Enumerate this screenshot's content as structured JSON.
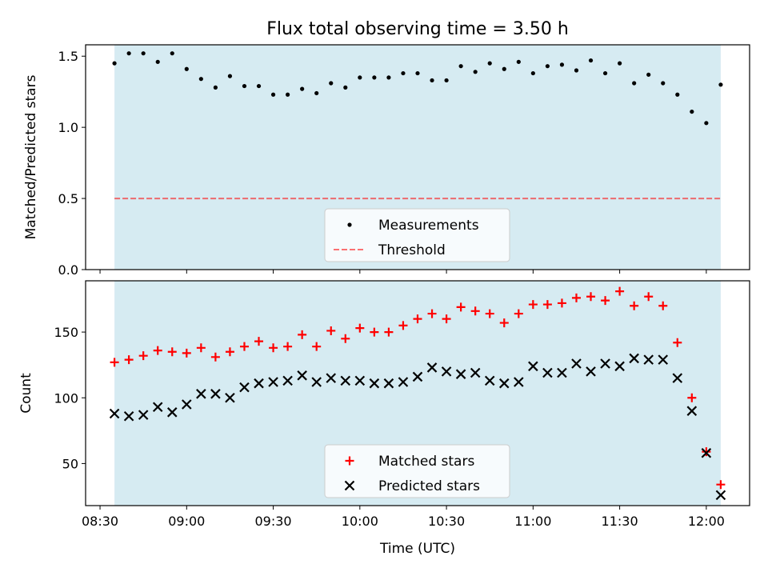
{
  "title": "Flux total observing time = 3.50 h",
  "colors": {
    "shade": "#add8e6",
    "measurements": "#000000",
    "threshold": "#ff0000",
    "matched": "#ff0000",
    "predicted": "#000000"
  },
  "chart_data": [
    {
      "type": "scatter",
      "panel": "top",
      "ylabel": "Matched/Predicted stars",
      "xlabel": "",
      "ylim": [
        0,
        1.58
      ],
      "yticks": [
        0.0,
        0.5,
        1.0,
        1.5
      ],
      "ytick_labels": [
        "0.0",
        "0.5",
        "1.0",
        "1.5"
      ],
      "shaded_span": [
        "08:35",
        "12:05"
      ],
      "threshold": {
        "name": "Threshold",
        "value": 0.5,
        "style": "dashed"
      },
      "legend": {
        "placement": "lower-center",
        "entries": [
          "Measurements",
          "Threshold"
        ]
      },
      "series": [
        {
          "name": "Measurements",
          "marker": "dot",
          "x": [
            "08:35",
            "08:40",
            "08:45",
            "08:50",
            "08:55",
            "09:00",
            "09:05",
            "09:10",
            "09:15",
            "09:20",
            "09:25",
            "09:30",
            "09:35",
            "09:40",
            "09:45",
            "09:50",
            "09:55",
            "10:00",
            "10:05",
            "10:10",
            "10:15",
            "10:20",
            "10:25",
            "10:30",
            "10:35",
            "10:40",
            "10:45",
            "10:50",
            "10:55",
            "11:00",
            "11:05",
            "11:10",
            "11:15",
            "11:20",
            "11:25",
            "11:30",
            "11:35",
            "11:40",
            "11:45",
            "11:50",
            "11:55",
            "12:00",
            "12:05"
          ],
          "values": [
            1.45,
            1.52,
            1.52,
            1.46,
            1.52,
            1.41,
            1.34,
            1.28,
            1.36,
            1.29,
            1.29,
            1.23,
            1.23,
            1.27,
            1.24,
            1.31,
            1.28,
            1.35,
            1.35,
            1.35,
            1.38,
            1.38,
            1.33,
            1.33,
            1.43,
            1.39,
            1.45,
            1.41,
            1.46,
            1.38,
            1.43,
            1.44,
            1.4,
            1.47,
            1.38,
            1.45,
            1.31,
            1.37,
            1.31,
            1.23,
            1.11,
            1.03,
            1.3
          ]
        }
      ]
    },
    {
      "type": "scatter",
      "panel": "bottom",
      "ylabel": "Count",
      "xlabel": "Time (UTC)",
      "ylim": [
        18,
        189
      ],
      "yticks": [
        50,
        100,
        150
      ],
      "ytick_labels": [
        "50",
        "100",
        "150"
      ],
      "xlim": [
        "08:25",
        "12:15"
      ],
      "xticks": [
        "08:30",
        "09:00",
        "09:30",
        "10:00",
        "10:30",
        "11:00",
        "11:30",
        "12:00"
      ],
      "shaded_span": [
        "08:35",
        "12:05"
      ],
      "legend": {
        "placement": "lower-center",
        "entries": [
          "Matched stars",
          "Predicted stars"
        ]
      },
      "series": [
        {
          "name": "Matched stars",
          "marker": "plus",
          "x": [
            "08:35",
            "08:40",
            "08:45",
            "08:50",
            "08:55",
            "09:00",
            "09:05",
            "09:10",
            "09:15",
            "09:20",
            "09:25",
            "09:30",
            "09:35",
            "09:40",
            "09:45",
            "09:50",
            "09:55",
            "10:00",
            "10:05",
            "10:10",
            "10:15",
            "10:20",
            "10:25",
            "10:30",
            "10:35",
            "10:40",
            "10:45",
            "10:50",
            "10:55",
            "11:00",
            "11:05",
            "11:10",
            "11:15",
            "11:20",
            "11:25",
            "11:30",
            "11:35",
            "11:40",
            "11:45",
            "11:50",
            "11:55",
            "12:00",
            "12:05"
          ],
          "values": [
            127,
            129,
            132,
            136,
            135,
            134,
            138,
            131,
            135,
            139,
            143,
            138,
            139,
            148,
            139,
            151,
            145,
            153,
            150,
            150,
            155,
            160,
            164,
            160,
            169,
            166,
            164,
            157,
            164,
            171,
            171,
            172,
            176,
            177,
            174,
            181,
            170,
            177,
            170,
            142,
            100,
            59,
            34
          ]
        },
        {
          "name": "Predicted stars",
          "marker": "x",
          "x": [
            "08:35",
            "08:40",
            "08:45",
            "08:50",
            "08:55",
            "09:00",
            "09:05",
            "09:10",
            "09:15",
            "09:20",
            "09:25",
            "09:30",
            "09:35",
            "09:40",
            "09:45",
            "09:50",
            "09:55",
            "10:00",
            "10:05",
            "10:10",
            "10:15",
            "10:20",
            "10:25",
            "10:30",
            "10:35",
            "10:40",
            "10:45",
            "10:50",
            "10:55",
            "11:00",
            "11:05",
            "11:10",
            "11:15",
            "11:20",
            "11:25",
            "11:30",
            "11:35",
            "11:40",
            "11:45",
            "11:50",
            "11:55",
            "12:00",
            "12:05"
          ],
          "values": [
            88,
            86,
            87,
            93,
            89,
            95,
            103,
            103,
            100,
            108,
            111,
            112,
            113,
            117,
            112,
            115,
            113,
            113,
            111,
            111,
            112,
            116,
            123,
            120,
            118,
            119,
            113,
            111,
            112,
            124,
            119,
            119,
            126,
            120,
            126,
            124,
            130,
            129,
            129,
            115,
            90,
            58,
            26
          ]
        }
      ]
    }
  ]
}
